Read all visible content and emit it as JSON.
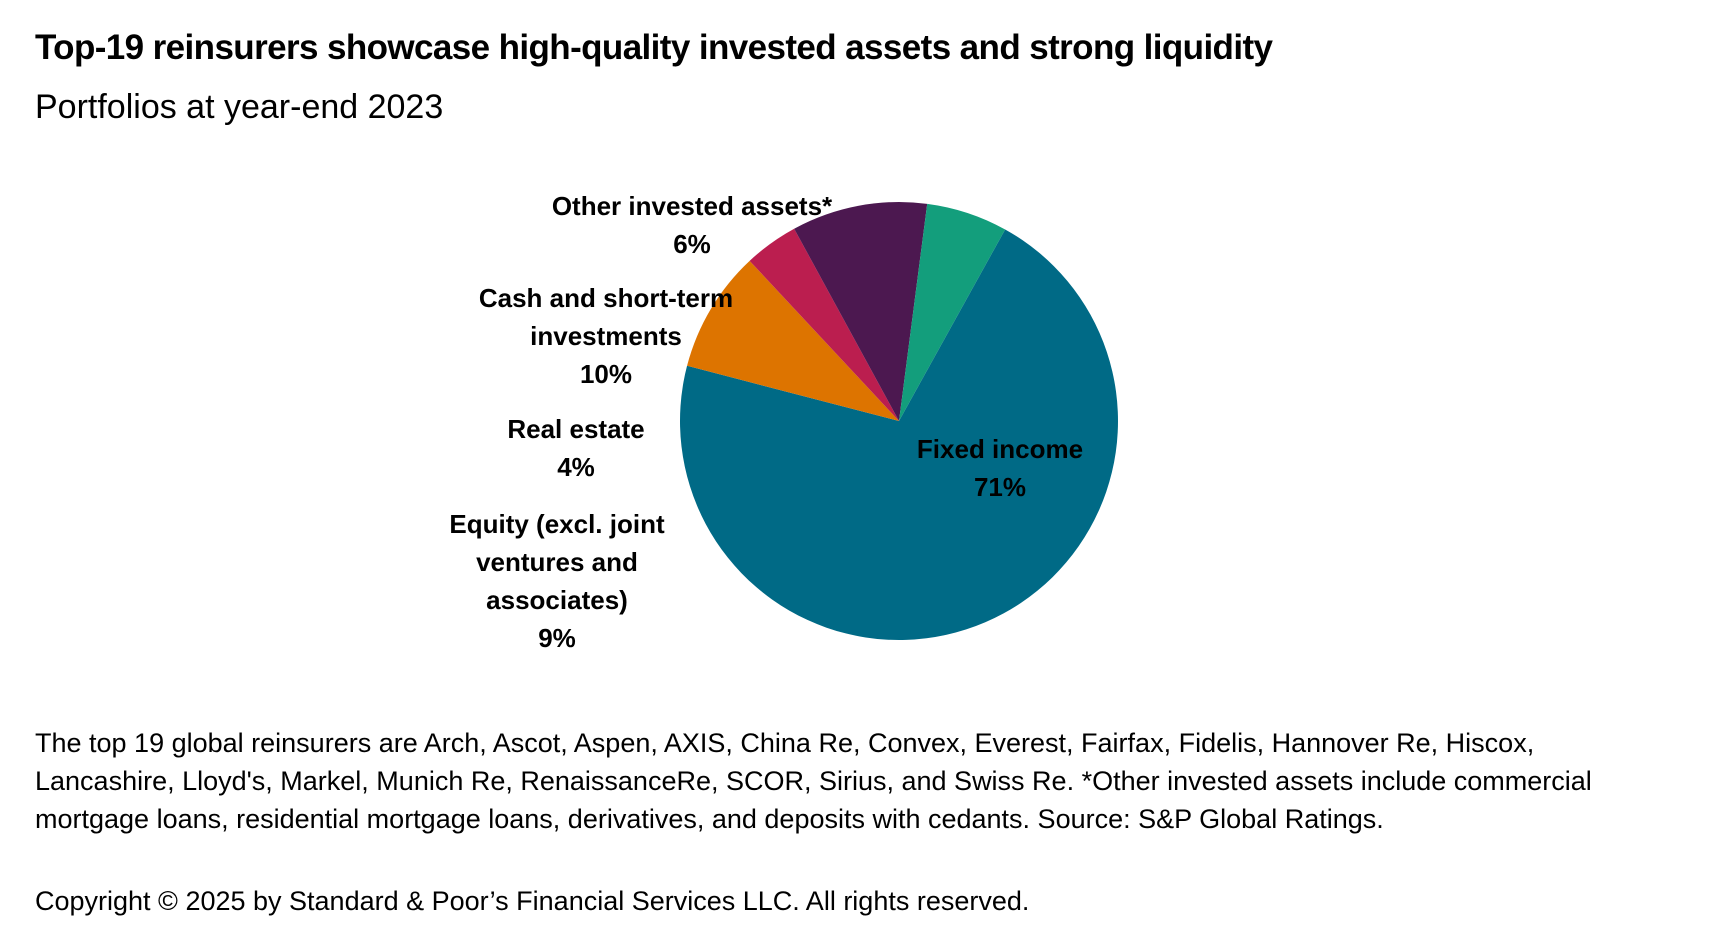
{
  "title": "Top-19 reinsurers showcase high-quality invested assets and strong liquidity",
  "subtitle": "Portfolios  at year-end 2023",
  "chart_data": {
    "type": "pie",
    "start_angle_deg": -61,
    "direction": "clockwise",
    "slices": [
      {
        "label_lines": [
          "Fixed income",
          "71%"
        ],
        "value": 71,
        "color": "#006A86"
      },
      {
        "label_lines": [
          "Equity (excl. joint",
          "ventures and",
          "associates)",
          "9%"
        ],
        "value": 9,
        "color": "#DD7400"
      },
      {
        "label_lines": [
          "Real estate",
          "4%"
        ],
        "value": 4,
        "color": "#BB1E4F"
      },
      {
        "label_lines": [
          "Cash and short-term",
          "investments",
          "10%"
        ],
        "value": 10,
        "color": "#4C1850"
      },
      {
        "label_lines": [
          "Other invested assets*",
          "6%"
        ],
        "value": 6,
        "color": "#139E7C"
      }
    ]
  },
  "footnote": "The top 19 global reinsurers are Arch, Ascot, Aspen, AXIS, China Re, Convex, Everest, Fairfax, Fidelis, Hannover Re, Hiscox, Lancashire, Lloyd's, Markel, Munich Re, RenaissanceRe, SCOR, Sirius, and Swiss Re. *Other invested assets include commercial mortgage loans, residential mortgage loans, derivatives, and deposits with cedants. Source: S&P Global Ratings.",
  "copyright": "Copyright © 2025 by Standard & Poor’s Financial Services LLC. All rights reserved."
}
